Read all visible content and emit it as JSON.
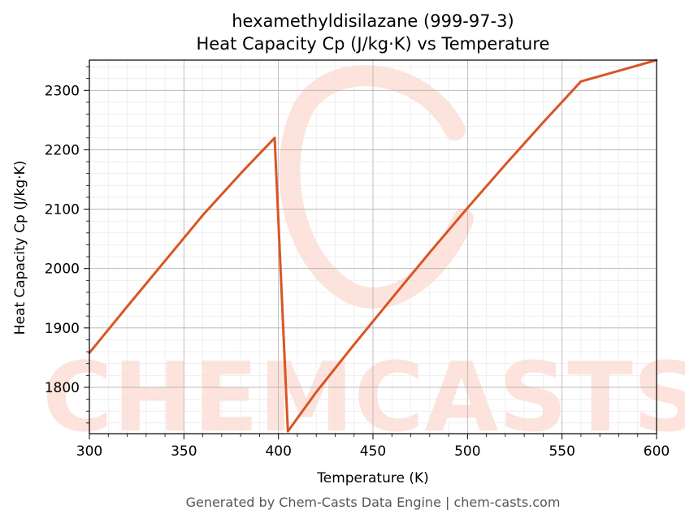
{
  "chart_data": {
    "type": "line",
    "title_line1": "hexamethyldisilazane (999-97-3)",
    "title_line2": "Heat Capacity Cp (J/kg·K) vs Temperature",
    "xlabel": "Temperature (K)",
    "ylabel": "Heat Capacity Cp (J/kg·K)",
    "xlim": [
      300,
      600
    ],
    "ylim": [
      1722,
      2351
    ],
    "xticks": [
      300,
      350,
      400,
      450,
      500,
      550,
      600
    ],
    "yticks": [
      1800,
      1900,
      2000,
      2100,
      2200,
      2300
    ],
    "grid": true,
    "series": [
      {
        "color": "#d95525",
        "x": [
          300,
          320,
          340,
          360,
          380,
          398,
          405,
          420,
          440,
          460,
          480,
          500,
          520,
          540,
          560,
          580,
          600
        ],
        "y": [
          1858,
          1936,
          2013,
          2090,
          2160,
          2220,
          1726,
          1792,
          1872,
          1950,
          2027,
          2102,
          2175,
          2246,
          2315,
          2333,
          2351
        ]
      }
    ]
  },
  "watermark": {
    "text": "CHEMCASTS"
  },
  "footer": "Generated by Chem-Casts Data Engine | chem-casts.com"
}
